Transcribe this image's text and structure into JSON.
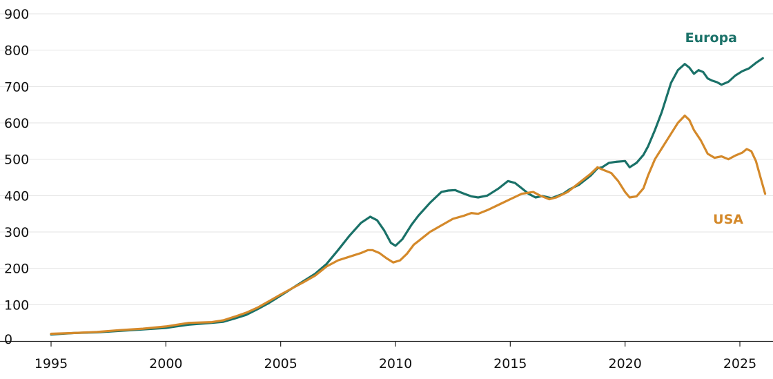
{
  "chart_data": {
    "type": "line",
    "title": "",
    "xlabel": "",
    "ylabel": "",
    "xlim": [
      1995,
      2026.1
    ],
    "ylim": [
      0,
      900
    ],
    "grid": "horizontal",
    "x_ticks": [
      "1995",
      "2000",
      "2005",
      "2010",
      "2015",
      "2020",
      "2025"
    ],
    "y_ticks": [
      "0",
      "100",
      "200",
      "300",
      "400",
      "500",
      "600",
      "700",
      "800",
      "900"
    ],
    "series": [
      {
        "name": "Europa",
        "color": "#1a7168",
        "points": [
          [
            1995.0,
            18
          ],
          [
            1996.0,
            22
          ],
          [
            1997.0,
            24
          ],
          [
            1998.0,
            28
          ],
          [
            1999.0,
            32
          ],
          [
            2000.0,
            36
          ],
          [
            2001.0,
            45
          ],
          [
            2002.0,
            50
          ],
          [
            2002.5,
            53
          ],
          [
            2003.0,
            62
          ],
          [
            2003.5,
            72
          ],
          [
            2004.0,
            88
          ],
          [
            2004.5,
            105
          ],
          [
            2005.0,
            125
          ],
          [
            2005.5,
            145
          ],
          [
            2006.0,
            165
          ],
          [
            2006.5,
            185
          ],
          [
            2007.0,
            212
          ],
          [
            2007.5,
            250
          ],
          [
            2008.0,
            290
          ],
          [
            2008.5,
            325
          ],
          [
            2008.9,
            342
          ],
          [
            2009.2,
            332
          ],
          [
            2009.5,
            305
          ],
          [
            2009.8,
            270
          ],
          [
            2010.0,
            262
          ],
          [
            2010.3,
            280
          ],
          [
            2010.7,
            320
          ],
          [
            2011.0,
            345
          ],
          [
            2011.5,
            380
          ],
          [
            2012.0,
            410
          ],
          [
            2012.3,
            414
          ],
          [
            2012.6,
            415
          ],
          [
            2012.8,
            410
          ],
          [
            2013.0,
            405
          ],
          [
            2013.3,
            398
          ],
          [
            2013.6,
            395
          ],
          [
            2014.0,
            400
          ],
          [
            2014.5,
            420
          ],
          [
            2014.9,
            440
          ],
          [
            2015.2,
            435
          ],
          [
            2015.5,
            420
          ],
          [
            2015.8,
            405
          ],
          [
            2016.1,
            395
          ],
          [
            2016.4,
            399
          ],
          [
            2016.8,
            393
          ],
          [
            2017.3,
            405
          ],
          [
            2017.6,
            418
          ],
          [
            2018.0,
            430
          ],
          [
            2018.5,
            455
          ],
          [
            2018.8,
            475
          ],
          [
            2019.0,
            478
          ],
          [
            2019.3,
            490
          ],
          [
            2019.6,
            493
          ],
          [
            2020.0,
            495
          ],
          [
            2020.2,
            478
          ],
          [
            2020.5,
            490
          ],
          [
            2020.8,
            512
          ],
          [
            2021.0,
            535
          ],
          [
            2021.3,
            580
          ],
          [
            2021.6,
            630
          ],
          [
            2022.0,
            710
          ],
          [
            2022.3,
            745
          ],
          [
            2022.6,
            762
          ],
          [
            2022.8,
            752
          ],
          [
            2023.0,
            735
          ],
          [
            2023.2,
            745
          ],
          [
            2023.4,
            740
          ],
          [
            2023.6,
            722
          ],
          [
            2023.8,
            716
          ],
          [
            2024.0,
            712
          ],
          [
            2024.2,
            705
          ],
          [
            2024.5,
            713
          ],
          [
            2024.8,
            730
          ],
          [
            2025.1,
            742
          ],
          [
            2025.4,
            750
          ],
          [
            2025.7,
            765
          ],
          [
            2026.0,
            778
          ]
        ]
      },
      {
        "name": "USA",
        "color": "#d4892a",
        "points": [
          [
            1995.0,
            20
          ],
          [
            1996.0,
            22
          ],
          [
            1997.0,
            25
          ],
          [
            1998.0,
            30
          ],
          [
            1999.0,
            34
          ],
          [
            2000.0,
            40
          ],
          [
            2001.0,
            50
          ],
          [
            2002.0,
            52
          ],
          [
            2002.5,
            57
          ],
          [
            2003.0,
            67
          ],
          [
            2003.5,
            78
          ],
          [
            2004.0,
            92
          ],
          [
            2004.5,
            110
          ],
          [
            2005.0,
            128
          ],
          [
            2005.5,
            145
          ],
          [
            2006.0,
            162
          ],
          [
            2006.5,
            180
          ],
          [
            2007.0,
            205
          ],
          [
            2007.5,
            222
          ],
          [
            2008.0,
            232
          ],
          [
            2008.5,
            242
          ],
          [
            2008.8,
            250
          ],
          [
            2009.0,
            250
          ],
          [
            2009.3,
            242
          ],
          [
            2009.6,
            228
          ],
          [
            2009.9,
            216
          ],
          [
            2010.2,
            222
          ],
          [
            2010.5,
            240
          ],
          [
            2010.8,
            265
          ],
          [
            2011.0,
            275
          ],
          [
            2011.5,
            300
          ],
          [
            2012.0,
            318
          ],
          [
            2012.5,
            336
          ],
          [
            2013.0,
            345
          ],
          [
            2013.3,
            352
          ],
          [
            2013.6,
            350
          ],
          [
            2014.0,
            360
          ],
          [
            2014.5,
            375
          ],
          [
            2015.0,
            390
          ],
          [
            2015.5,
            405
          ],
          [
            2016.0,
            410
          ],
          [
            2016.3,
            400
          ],
          [
            2016.7,
            390
          ],
          [
            2017.0,
            395
          ],
          [
            2017.5,
            410
          ],
          [
            2018.0,
            435
          ],
          [
            2018.5,
            460
          ],
          [
            2018.8,
            478
          ],
          [
            2019.0,
            472
          ],
          [
            2019.4,
            462
          ],
          [
            2019.7,
            440
          ],
          [
            2020.0,
            410
          ],
          [
            2020.2,
            395
          ],
          [
            2020.5,
            398
          ],
          [
            2020.8,
            420
          ],
          [
            2021.0,
            455
          ],
          [
            2021.3,
            500
          ],
          [
            2021.6,
            530
          ],
          [
            2022.0,
            570
          ],
          [
            2022.3,
            600
          ],
          [
            2022.6,
            620
          ],
          [
            2022.8,
            608
          ],
          [
            2023.0,
            580
          ],
          [
            2023.3,
            552
          ],
          [
            2023.6,
            515
          ],
          [
            2023.9,
            504
          ],
          [
            2024.2,
            508
          ],
          [
            2024.5,
            500
          ],
          [
            2024.8,
            510
          ],
          [
            2025.1,
            518
          ],
          [
            2025.3,
            528
          ],
          [
            2025.5,
            522
          ],
          [
            2025.7,
            495
          ],
          [
            2025.9,
            450
          ],
          [
            2026.1,
            405
          ]
        ]
      }
    ],
    "annotations": [
      {
        "text": "Europa",
        "series": "Europa"
      },
      {
        "text": "USA",
        "series": "USA"
      }
    ]
  }
}
